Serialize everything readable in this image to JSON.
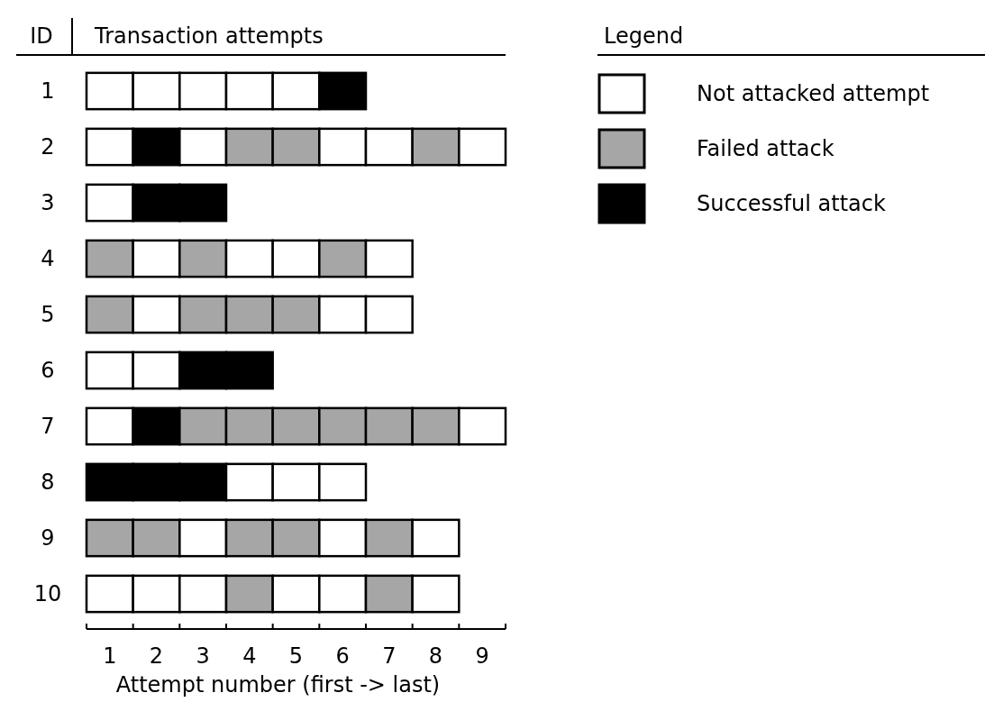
{
  "chart_data": {
    "type": "bar",
    "orientation": "horizontal",
    "stacked": true,
    "title": "Transaction attempts",
    "ylabel": "ID",
    "xlabel": "Attempt number (first -> last)",
    "legend_title": "Legend",
    "annotations": [
      "Not attacked attempt",
      "Failed attack",
      "Successful attack"
    ],
    "categories": [
      "1",
      "2",
      "3",
      "4",
      "5",
      "6",
      "7",
      "8",
      "9",
      "10"
    ],
    "xlim": [
      0,
      9
    ],
    "xticks": [
      {
        "value": 0,
        "label": null
      },
      {
        "value": 0.5,
        "label": "1"
      },
      {
        "value": 1,
        "label": null
      },
      {
        "value": 1.5,
        "label": "2"
      },
      {
        "value": 2,
        "label": null
      },
      {
        "value": 2.5,
        "label": "3"
      },
      {
        "value": 3,
        "label": null
      },
      {
        "value": 3.5,
        "label": "4"
      },
      {
        "value": 4,
        "label": null
      },
      {
        "value": 4.5,
        "label": "5"
      },
      {
        "value": 5,
        "label": null
      },
      {
        "value": 5.5,
        "label": "6"
      },
      {
        "value": 6,
        "label": null
      },
      {
        "value": 6.5,
        "label": "7"
      },
      {
        "value": 7,
        "label": null
      },
      {
        "value": 7.5,
        "label": "8"
      },
      {
        "value": 8,
        "label": null
      },
      {
        "value": 8.5,
        "label": "9"
      },
      {
        "value": 9,
        "label": null
      }
    ],
    "series": [
      {
        "values": [
          1,
          1,
          1,
          1,
          1,
          1,
          1,
          1,
          1,
          1
        ],
        "colors": [
          "#ffffff",
          "#ffffff",
          "#ffffff",
          "#a6a6a6",
          "#a6a6a6",
          "#ffffff",
          "#ffffff",
          "#000000",
          "#a6a6a6",
          "#ffffff"
        ]
      },
      {
        "values": [
          1,
          1,
          1,
          1,
          1,
          1,
          1,
          1,
          1,
          1
        ],
        "colors": [
          "#ffffff",
          "#000000",
          "#000000",
          "#ffffff",
          "#ffffff",
          "#ffffff",
          "#000000",
          "#000000",
          "#a6a6a6",
          "#ffffff"
        ]
      },
      {
        "values": [
          1,
          1,
          1,
          1,
          1,
          1,
          1,
          1,
          1,
          1
        ],
        "colors": [
          "#ffffff",
          "#ffffff",
          "#000000",
          "#a6a6a6",
          "#a6a6a6",
          "#000000",
          "#a6a6a6",
          "#000000",
          "#ffffff",
          "#ffffff"
        ]
      },
      {
        "values": [
          1,
          1,
          null,
          1,
          1,
          1,
          1,
          1,
          1,
          1
        ],
        "colors": [
          "#ffffff",
          "#a6a6a6",
          null,
          "#ffffff",
          "#a6a6a6",
          "#000000",
          "#a6a6a6",
          "#ffffff",
          "#a6a6a6",
          "#a6a6a6"
        ]
      },
      {
        "values": [
          1,
          1,
          null,
          1,
          1,
          null,
          1,
          1,
          1,
          1
        ],
        "colors": [
          "#ffffff",
          "#a6a6a6",
          null,
          "#ffffff",
          "#a6a6a6",
          null,
          "#a6a6a6",
          "#ffffff",
          "#a6a6a6",
          "#ffffff"
        ]
      },
      {
        "values": [
          1,
          1,
          null,
          1,
          1,
          null,
          1,
          1,
          1,
          1
        ],
        "colors": [
          "#000000",
          "#ffffff",
          null,
          "#a6a6a6",
          "#ffffff",
          null,
          "#a6a6a6",
          "#ffffff",
          "#ffffff",
          "#ffffff"
        ]
      },
      {
        "values": [
          null,
          1,
          null,
          1,
          1,
          null,
          1,
          null,
          1,
          1
        ],
        "colors": [
          null,
          "#ffffff",
          null,
          "#ffffff",
          "#ffffff",
          null,
          "#a6a6a6",
          null,
          "#a6a6a6",
          "#a6a6a6"
        ]
      },
      {
        "values": [
          null,
          1,
          null,
          null,
          null,
          null,
          1,
          null,
          1,
          1
        ],
        "colors": [
          null,
          "#a6a6a6",
          null,
          null,
          null,
          null,
          "#a6a6a6",
          null,
          "#ffffff",
          "#ffffff"
        ]
      },
      {
        "values": [
          null,
          1,
          null,
          null,
          null,
          null,
          1,
          null,
          null,
          null
        ],
        "colors": [
          null,
          "#ffffff",
          null,
          null,
          null,
          null,
          "#ffffff",
          null,
          null,
          null
        ]
      }
    ]
  }
}
